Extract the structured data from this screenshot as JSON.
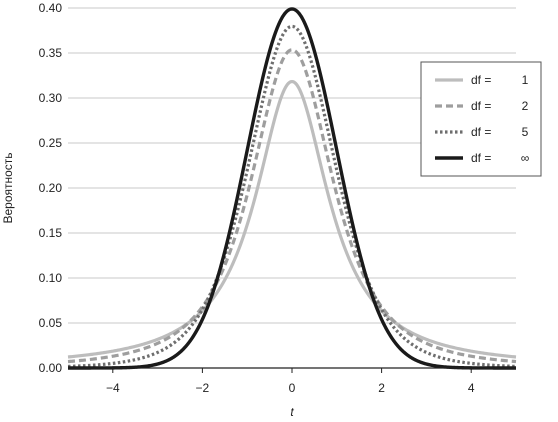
{
  "chart_data": {
    "type": "line",
    "title": "",
    "xlabel": "t",
    "ylabel": "Вероятность",
    "xlim": [
      -5,
      5
    ],
    "ylim": [
      0,
      0.4
    ],
    "x_ticks": [
      -4,
      -2,
      0,
      2,
      4
    ],
    "x_tick_labels": [
      "−4",
      "−2",
      "0",
      "2",
      "4"
    ],
    "y_ticks": [
      0,
      0.05,
      0.1,
      0.15,
      0.2,
      0.25,
      0.3,
      0.35,
      0.4
    ],
    "y_tick_labels": [
      "0.00",
      "0.05",
      "0.10",
      "0.15",
      "0.20",
      "0.25",
      "0.30",
      "0.35",
      "0.40"
    ],
    "grid": "horizontal",
    "legend_position": "top-right",
    "series": [
      {
        "name": "df = 1",
        "df_label": "df =",
        "df_value": "1",
        "df": 1,
        "color": "#bdbdbd",
        "style": "solid",
        "peak": 0.318
      },
      {
        "name": "df = 2",
        "df_label": "df =",
        "df_value": "2",
        "df": 2,
        "color": "#9e9e9e",
        "style": "dashed",
        "peak": 0.354
      },
      {
        "name": "df = 5",
        "df_label": "df =",
        "df_value": "5",
        "df": 5,
        "color": "#6e6e6e",
        "style": "dotted",
        "peak": 0.38
      },
      {
        "name": "df = ∞",
        "df_label": "df =",
        "df_value": "∞",
        "df": "inf",
        "color": "#1a1a1a",
        "style": "solid",
        "peak": 0.399
      }
    ]
  }
}
